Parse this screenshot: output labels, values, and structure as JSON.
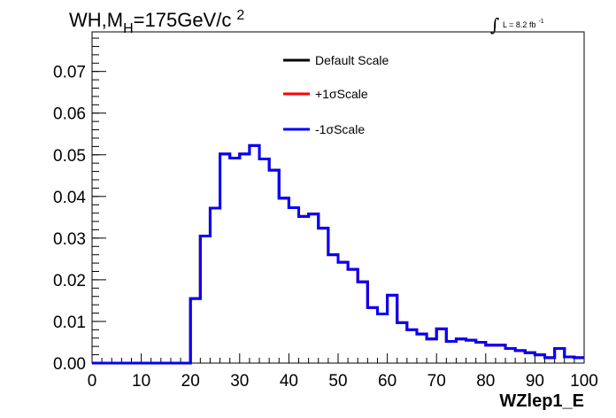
{
  "chart_data": {
    "type": "line",
    "title": {
      "main": "WH,M",
      "sub": "H",
      "rest": "=175GeV/c",
      "sup": "2"
    },
    "lumi": {
      "integral": "∫",
      "text": "L = 8.2 fb",
      "sup": "-1"
    },
    "xlabel": "WZlep1_E",
    "ylabel": "",
    "xlim": [
      0,
      100
    ],
    "ylim": [
      0,
      0.0795
    ],
    "x_ticks": [
      "0",
      "10",
      "20",
      "30",
      "40",
      "50",
      "60",
      "70",
      "80",
      "90",
      "100"
    ],
    "y_ticks": [
      "0.00",
      "0.01",
      "0.02",
      "0.03",
      "0.04",
      "0.05",
      "0.06",
      "0.07"
    ],
    "bin_edges": [
      0,
      2,
      4,
      6,
      8,
      10,
      12,
      14,
      16,
      18,
      20,
      22,
      24,
      26,
      28,
      30,
      32,
      34,
      36,
      38,
      40,
      42,
      44,
      46,
      48,
      50,
      52,
      54,
      56,
      58,
      60,
      62,
      64,
      66,
      68,
      70,
      72,
      74,
      76,
      78,
      80,
      82,
      84,
      86,
      88,
      90,
      92,
      94,
      96,
      98,
      100
    ],
    "series": [
      {
        "name": "Default Scale",
        "color": "#000000",
        "values": [
          0,
          0,
          0,
          0,
          0,
          0,
          0,
          0,
          0,
          0,
          0.0155,
          0.0305,
          0.0372,
          0.0502,
          0.0492,
          0.0502,
          0.0522,
          0.049,
          0.0463,
          0.0396,
          0.0373,
          0.0352,
          0.0358,
          0.0324,
          0.026,
          0.0242,
          0.0225,
          0.0195,
          0.0133,
          0.0118,
          0.0163,
          0.0097,
          0.008,
          0.007,
          0.0058,
          0.0082,
          0.0052,
          0.0058,
          0.0055,
          0.005,
          0.0043,
          0.0043,
          0.0035,
          0.003,
          0.0025,
          0.002,
          0.0013,
          0.0035,
          0.0015,
          0.0013
        ]
      },
      {
        "name": "+1σScale",
        "color": "#ff0000",
        "values": [
          0,
          0,
          0,
          0,
          0,
          0,
          0,
          0,
          0,
          0,
          0.0155,
          0.0305,
          0.0372,
          0.0502,
          0.0492,
          0.0502,
          0.0522,
          0.049,
          0.0463,
          0.0396,
          0.0373,
          0.0352,
          0.0358,
          0.0324,
          0.026,
          0.0242,
          0.0225,
          0.0195,
          0.0133,
          0.0118,
          0.0163,
          0.0097,
          0.008,
          0.007,
          0.0058,
          0.0082,
          0.0052,
          0.0058,
          0.0055,
          0.005,
          0.0043,
          0.0043,
          0.0035,
          0.003,
          0.0025,
          0.002,
          0.0013,
          0.0035,
          0.0015,
          0.0013
        ]
      },
      {
        "name": "-1σScale",
        "color": "#0000ff",
        "values": [
          0,
          0,
          0,
          0,
          0,
          0,
          0,
          0,
          0,
          0,
          0.0155,
          0.0305,
          0.0372,
          0.0502,
          0.0492,
          0.0502,
          0.0522,
          0.049,
          0.0463,
          0.0396,
          0.0373,
          0.0352,
          0.0358,
          0.0324,
          0.026,
          0.0242,
          0.0225,
          0.0195,
          0.0133,
          0.0118,
          0.0163,
          0.0097,
          0.008,
          0.007,
          0.0058,
          0.0082,
          0.0052,
          0.0058,
          0.0055,
          0.005,
          0.0043,
          0.0043,
          0.0035,
          0.003,
          0.0025,
          0.002,
          0.0013,
          0.0035,
          0.0015,
          0.0013
        ]
      }
    ],
    "legend_position": "top-center",
    "grid": false
  }
}
